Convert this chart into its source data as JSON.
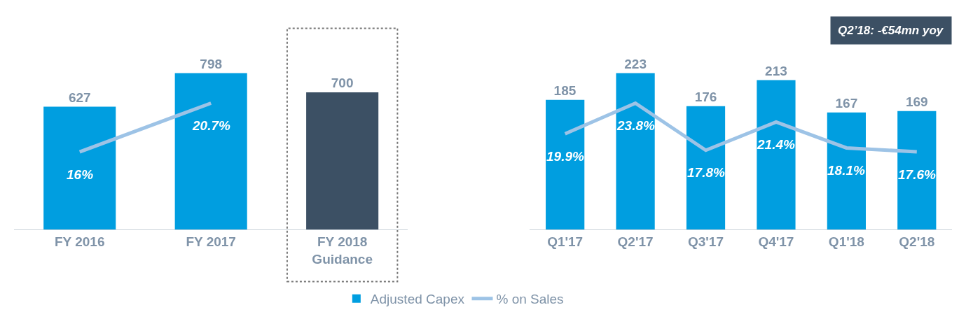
{
  "chart_data": [
    {
      "type": "bar",
      "categories": [
        "FY 2016",
        "FY 2017",
        "FY 2018\nGuidance"
      ],
      "data_labels": true,
      "legend": "bottom",
      "series": [
        {
          "name": "Adjusted Capex",
          "color": "#009ee0",
          "colors": [
            "#009ee0",
            "#009ee0",
            "#3c5064"
          ],
          "values": [
            627,
            798,
            700
          ]
        },
        {
          "name": "% on Sales",
          "type": "line",
          "axis": "y2",
          "color": "#9dc3e6",
          "values": [
            16,
            20.7,
            null
          ],
          "value_labels": [
            "16%",
            "20.7%",
            null
          ]
        }
      ]
    },
    {
      "type": "bar",
      "categories": [
        "Q1'17",
        "Q2'17",
        "Q3'17",
        "Q4'17",
        "Q1'18",
        "Q2'18"
      ],
      "data_labels": true,
      "annotations": [
        "Q2’18: -€54mn yoy"
      ],
      "series": [
        {
          "color": "#009ee0",
          "values": [
            185,
            223,
            176,
            213,
            167,
            169
          ]
        },
        {
          "type": "line",
          "axis": "y2",
          "color": "#9dc3e6",
          "values": [
            19.9,
            23.8,
            17.8,
            21.4,
            18.1,
            17.6
          ],
          "value_labels": [
            "19.9%",
            "23.8%",
            "17.8%",
            "21.4%",
            "18.1%",
            "17.6%"
          ]
        }
      ]
    }
  ]
}
